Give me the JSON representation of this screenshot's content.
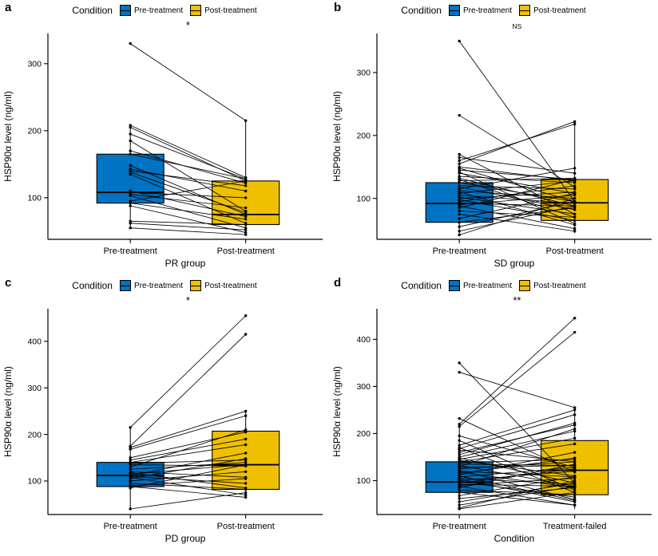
{
  "figure": {
    "ylabel": "HSP90α level (ng/ml)",
    "colors": {
      "pre": "#0073C2",
      "post": "#EFC000",
      "line": "#000000"
    },
    "legend": {
      "title": "Condition",
      "pre_label": "Pre-treatment",
      "post_label": "Post-treatment"
    }
  },
  "chart_data": [
    {
      "type": "box",
      "letter": "a",
      "significance": "*",
      "xlabel": "PR group",
      "x_ticks": [
        "Pre-treatment",
        "Post-treatment"
      ],
      "ylim": [
        38,
        345
      ],
      "yticks": [
        100,
        200,
        300
      ],
      "box_pre": {
        "min": 55,
        "q1": 92,
        "median": 108,
        "q3": 165,
        "max": 208
      },
      "box_post": {
        "min": 45,
        "q1": 60,
        "median": 75,
        "q3": 125,
        "max": 215
      },
      "pairs": [
        [
          330,
          215
        ],
        [
          208,
          130
        ],
        [
          205,
          125
        ],
        [
          195,
          128
        ],
        [
          185,
          80
        ],
        [
          170,
          122
        ],
        [
          165,
          128
        ],
        [
          148,
          75
        ],
        [
          143,
          110
        ],
        [
          140,
          118
        ],
        [
          138,
          78
        ],
        [
          135,
          62
        ],
        [
          110,
          72
        ],
        [
          108,
          100
        ],
        [
          105,
          85
        ],
        [
          103,
          55
        ],
        [
          95,
          125
        ],
        [
          92,
          68
        ],
        [
          88,
          48
        ],
        [
          65,
          60
        ],
        [
          62,
          52
        ],
        [
          55,
          45
        ]
      ]
    },
    {
      "type": "box",
      "letter": "b",
      "significance": "NS",
      "xlabel": "SD group",
      "x_ticks": [
        "Pre-treatment",
        "Post-treatment"
      ],
      "ylim": [
        35,
        362
      ],
      "yticks": [
        100,
        200,
        300
      ],
      "box_pre": {
        "min": 42,
        "q1": 62,
        "median": 92,
        "q3": 125,
        "max": 170
      },
      "box_post": {
        "min": 45,
        "q1": 65,
        "median": 93,
        "q3": 130,
        "max": 222
      },
      "pairs": [
        [
          350,
          95
        ],
        [
          232,
          118
        ],
        [
          170,
          75
        ],
        [
          165,
          140
        ],
        [
          160,
          218
        ],
        [
          155,
          222
        ],
        [
          150,
          128
        ],
        [
          148,
          95
        ],
        [
          145,
          130
        ],
        [
          142,
          60
        ],
        [
          140,
          108
        ],
        [
          135,
          125
        ],
        [
          132,
          88
        ],
        [
          130,
          70
        ],
        [
          128,
          132
        ],
        [
          125,
          95
        ],
        [
          120,
          115
        ],
        [
          118,
          82
        ],
        [
          115,
          148
        ],
        [
          112,
          100
        ],
        [
          110,
          58
        ],
        [
          108,
          128
        ],
        [
          105,
          92
        ],
        [
          102,
          75
        ],
        [
          100,
          110
        ],
        [
          98,
          65
        ],
        [
          95,
          120
        ],
        [
          92,
          88
        ],
        [
          90,
          105
        ],
        [
          88,
          52
        ],
        [
          85,
          130
        ],
        [
          80,
          70
        ],
        [
          75,
          48
        ],
        [
          68,
          108
        ],
        [
          62,
          85
        ],
        [
          55,
          95
        ],
        [
          48,
          88
        ],
        [
          42,
          100
        ]
      ]
    },
    {
      "type": "box",
      "letter": "c",
      "significance": "*",
      "xlabel": "PD group",
      "x_ticks": [
        "Pre-treatment",
        "Post-treatment"
      ],
      "ylim": [
        28,
        470
      ],
      "yticks": [
        100,
        200,
        300,
        400
      ],
      "box_pre": {
        "min": 40,
        "q1": 88,
        "median": 112,
        "q3": 140,
        "max": 215
      },
      "box_post": {
        "min": 65,
        "q1": 82,
        "median": 135,
        "q3": 207,
        "max": 250
      },
      "pairs": [
        [
          215,
          455
        ],
        [
          175,
          415
        ],
        [
          172,
          250
        ],
        [
          168,
          240
        ],
        [
          150,
          205
        ],
        [
          145,
          190
        ],
        [
          140,
          178
        ],
        [
          138,
          145
        ],
        [
          135,
          132
        ],
        [
          130,
          210
        ],
        [
          125,
          140
        ],
        [
          120,
          108
        ],
        [
          118,
          85
        ],
        [
          115,
          135
        ],
        [
          112,
          160
        ],
        [
          110,
          95
        ],
        [
          108,
          70
        ],
        [
          105,
          148
        ],
        [
          100,
          120
        ],
        [
          95,
          82
        ],
        [
          90,
          105
        ],
        [
          88,
          65
        ],
        [
          85,
          135
        ],
        [
          40,
          75
        ]
      ]
    },
    {
      "type": "box",
      "letter": "d",
      "significance": "**",
      "xlabel": "Condition",
      "x_ticks": [
        "Pre-treatment",
        "Treatment-failed"
      ],
      "ylim": [
        28,
        465
      ],
      "yticks": [
        100,
        200,
        300,
        400
      ],
      "box_pre": {
        "min": 40,
        "q1": 75,
        "median": 97,
        "q3": 140,
        "max": 220
      },
      "box_post": {
        "min": 40,
        "q1": 70,
        "median": 122,
        "q3": 185,
        "max": 255
      },
      "pairs": [
        [
          350,
          95
        ],
        [
          330,
          255
        ],
        [
          232,
          118
        ],
        [
          220,
          445
        ],
        [
          215,
          415
        ],
        [
          195,
          128
        ],
        [
          185,
          80
        ],
        [
          175,
          250
        ],
        [
          170,
          75
        ],
        [
          168,
          240
        ],
        [
          165,
          140
        ],
        [
          160,
          218
        ],
        [
          155,
          222
        ],
        [
          150,
          205
        ],
        [
          148,
          95
        ],
        [
          145,
          190
        ],
        [
          143,
          110
        ],
        [
          140,
          178
        ],
        [
          138,
          145
        ],
        [
          135,
          132
        ],
        [
          132,
          88
        ],
        [
          130,
          210
        ],
        [
          128,
          132
        ],
        [
          125,
          140
        ],
        [
          122,
          60
        ],
        [
          120,
          108
        ],
        [
          118,
          85
        ],
        [
          115,
          148
        ],
        [
          112,
          160
        ],
        [
          110,
          58
        ],
        [
          108,
          128
        ],
        [
          105,
          92
        ],
        [
          103,
          55
        ],
        [
          100,
          120
        ],
        [
          98,
          65
        ],
        [
          95,
          125
        ],
        [
          92,
          88
        ],
        [
          90,
          105
        ],
        [
          88,
          48
        ],
        [
          85,
          135
        ],
        [
          80,
          70
        ],
        [
          75,
          48
        ],
        [
          68,
          108
        ],
        [
          62,
          85
        ],
        [
          55,
          95
        ],
        [
          48,
          88
        ],
        [
          42,
          100
        ],
        [
          40,
          75
        ]
      ]
    }
  ]
}
